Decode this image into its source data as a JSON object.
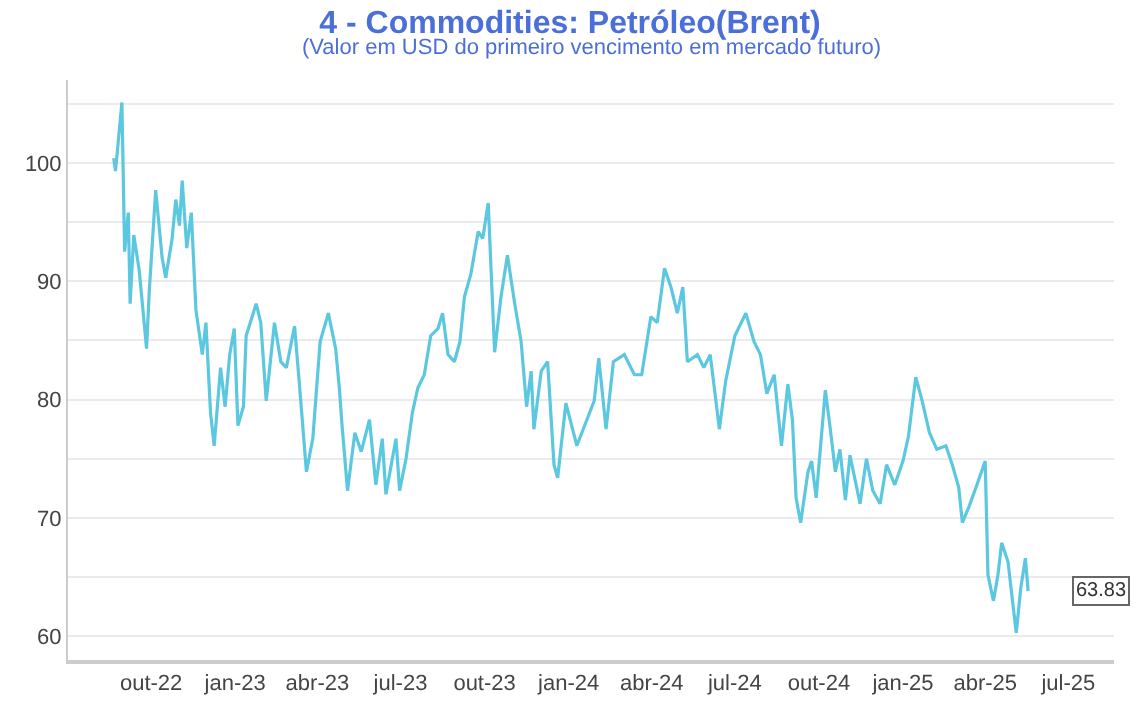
{
  "chart_data": {
    "type": "line",
    "title": "4 - Commodities: Petróleo(Brent)",
    "subtitle": "(Valor em USD do primeiro vencimento em mercado futuro)",
    "x": [
      "2022-08-21",
      "2022-08-23",
      "2022-08-30",
      "2022-09-02",
      "2022-09-06",
      "2022-09-08",
      "2022-09-12",
      "2022-09-18",
      "2022-09-26",
      "2022-09-29",
      "2022-10-06",
      "2022-10-13",
      "2022-10-17",
      "2022-10-24",
      "2022-10-28",
      "2022-11-01",
      "2022-11-04",
      "2022-11-09",
      "2022-11-14",
      "2022-11-19",
      "2022-11-26",
      "2022-11-30",
      "2022-12-05",
      "2022-12-09",
      "2022-12-16",
      "2022-12-21",
      "2022-12-26",
      "2022-12-31",
      "2023-01-04",
      "2023-01-10",
      "2023-01-13",
      "2023-01-24",
      "2023-01-29",
      "2023-02-04",
      "2023-02-13",
      "2023-02-20",
      "2023-02-26",
      "2023-03-07",
      "2023-03-12",
      "2023-03-20",
      "2023-03-27",
      "2023-04-04",
      "2023-04-13",
      "2023-04-21",
      "2023-04-25",
      "2023-04-28",
      "2023-05-04",
      "2023-05-12",
      "2023-05-19",
      "2023-05-28",
      "2023-06-04",
      "2023-06-11",
      "2023-06-15",
      "2023-06-26",
      "2023-06-30",
      "2023-07-07",
      "2023-07-14",
      "2023-07-20",
      "2023-07-27",
      "2023-08-03",
      "2023-08-11",
      "2023-08-16",
      "2023-08-22",
      "2023-08-29",
      "2023-09-04",
      "2023-09-09",
      "2023-09-16",
      "2023-09-24",
      "2023-09-29",
      "2023-10-05",
      "2023-10-12",
      "2023-10-19",
      "2023-10-26",
      "2023-11-03",
      "2023-11-10",
      "2023-11-16",
      "2023-11-21",
      "2023-11-24",
      "2023-12-02",
      "2023-12-09",
      "2023-12-16",
      "2023-12-20",
      "2023-12-29",
      "2024-01-10",
      "2024-01-21",
      "2024-01-29",
      "2024-02-03",
      "2024-02-11",
      "2024-02-19",
      "2024-03-02",
      "2024-03-13",
      "2024-03-21",
      "2024-03-31",
      "2024-04-07",
      "2024-04-15",
      "2024-04-22",
      "2024-04-29",
      "2024-05-05",
      "2024-05-10",
      "2024-05-21",
      "2024-05-28",
      "2024-06-04",
      "2024-06-14",
      "2024-06-21",
      "2024-07-01",
      "2024-07-13",
      "2024-07-22",
      "2024-07-29",
      "2024-08-05",
      "2024-08-13",
      "2024-08-21",
      "2024-08-28",
      "2024-09-02",
      "2024-09-06",
      "2024-09-11",
      "2024-09-19",
      "2024-09-23",
      "2024-09-28",
      "2024-10-08",
      "2024-10-13",
      "2024-10-19",
      "2024-10-24",
      "2024-10-30",
      "2024-11-04",
      "2024-11-15",
      "2024-11-22",
      "2024-11-29",
      "2024-12-07",
      "2024-12-14",
      "2024-12-23",
      "2025-01-01",
      "2025-01-07",
      "2025-01-15",
      "2025-01-22",
      "2025-01-30",
      "2025-02-07",
      "2025-02-17",
      "2025-02-24",
      "2025-03-03",
      "2025-03-07",
      "2025-03-14",
      "2025-03-22",
      "2025-04-01",
      "2025-04-04",
      "2025-04-10",
      "2025-04-15",
      "2025-04-19",
      "2025-04-26",
      "2025-04-30",
      "2025-05-05",
      "2025-05-10",
      "2025-05-15",
      "2025-05-18"
    ],
    "series": [
      {
        "color": "#5bc8e0",
        "values": [
          100.4,
          99.3,
          105.1,
          92.5,
          95.8,
          88.1,
          93.9,
          90.9,
          84.3,
          89.2,
          97.7,
          92.0,
          90.3,
          93.6,
          96.9,
          94.7,
          98.5,
          92.8,
          95.8,
          87.6,
          83.8,
          86.5,
          78.9,
          76.1,
          82.7,
          79.4,
          83.8,
          86.0,
          77.8,
          79.4,
          85.4,
          88.1,
          86.5,
          79.9,
          86.5,
          83.2,
          82.7,
          86.2,
          81.6,
          73.9,
          76.7,
          84.9,
          87.3,
          84.3,
          81.0,
          77.8,
          72.3,
          77.2,
          75.6,
          78.3,
          72.8,
          76.7,
          72.0,
          76.7,
          72.3,
          75.0,
          78.9,
          81.0,
          82.1,
          85.4,
          86.0,
          87.3,
          83.8,
          83.2,
          84.9,
          88.7,
          90.6,
          94.2,
          93.6,
          96.6,
          84.0,
          88.7,
          92.2,
          88.1,
          84.9,
          79.4,
          82.4,
          77.5,
          82.4,
          83.2,
          74.5,
          73.4,
          79.7,
          76.1,
          78.3,
          79.9,
          83.5,
          77.5,
          83.2,
          83.8,
          82.1,
          82.1,
          87.0,
          86.5,
          91.1,
          89.5,
          87.3,
          89.5,
          83.2,
          83.8,
          82.7,
          83.8,
          77.5,
          81.6,
          85.4,
          87.3,
          84.9,
          83.8,
          80.5,
          82.1,
          76.1,
          81.3,
          78.3,
          71.7,
          69.6,
          73.9,
          74.8,
          71.7,
          80.8,
          77.8,
          73.9,
          75.8,
          71.5,
          75.3,
          71.2,
          75.0,
          72.3,
          71.2,
          74.5,
          72.8,
          74.8,
          76.9,
          81.9,
          79.9,
          77.2,
          75.8,
          76.1,
          74.5,
          72.6,
          69.6,
          70.9,
          72.6,
          74.8,
          65.2,
          63.0,
          65.2,
          67.9,
          66.3,
          63.6,
          60.3,
          64.1,
          66.6,
          63.83
        ]
      }
    ],
    "annotations": [
      {
        "text": "63.83",
        "x": "2025-05-18",
        "y": 63.83
      }
    ],
    "xlim": [
      "2022-07-02",
      "2025-08-20"
    ],
    "xticks": [
      {
        "value": "2022-10-01",
        "label": "out-22"
      },
      {
        "value": "2023-01-01",
        "label": "jan-23"
      },
      {
        "value": "2023-04-01",
        "label": "abr-23"
      },
      {
        "value": "2023-07-01",
        "label": "jul-23"
      },
      {
        "value": "2023-10-01",
        "label": "out-23"
      },
      {
        "value": "2024-01-01",
        "label": "jan-24"
      },
      {
        "value": "2024-04-01",
        "label": "abr-24"
      },
      {
        "value": "2024-07-01",
        "label": "jul-24"
      },
      {
        "value": "2024-10-01",
        "label": "out-24"
      },
      {
        "value": "2025-01-01",
        "label": "jan-25"
      },
      {
        "value": "2025-04-01",
        "label": "abr-25"
      },
      {
        "value": "2025-07-01",
        "label": "jul-25"
      }
    ],
    "ylim": [
      58,
      107
    ],
    "yticks": [
      60,
      {
        "value": 65,
        "label": null
      },
      70,
      {
        "value": 75,
        "label": null
      },
      80,
      {
        "value": 85,
        "label": null
      },
      90,
      {
        "value": 95,
        "label": null
      },
      100,
      {
        "value": 105,
        "label": null
      }
    ],
    "grid": "y",
    "legend": false,
    "marker": "none",
    "line_style": "solid"
  }
}
